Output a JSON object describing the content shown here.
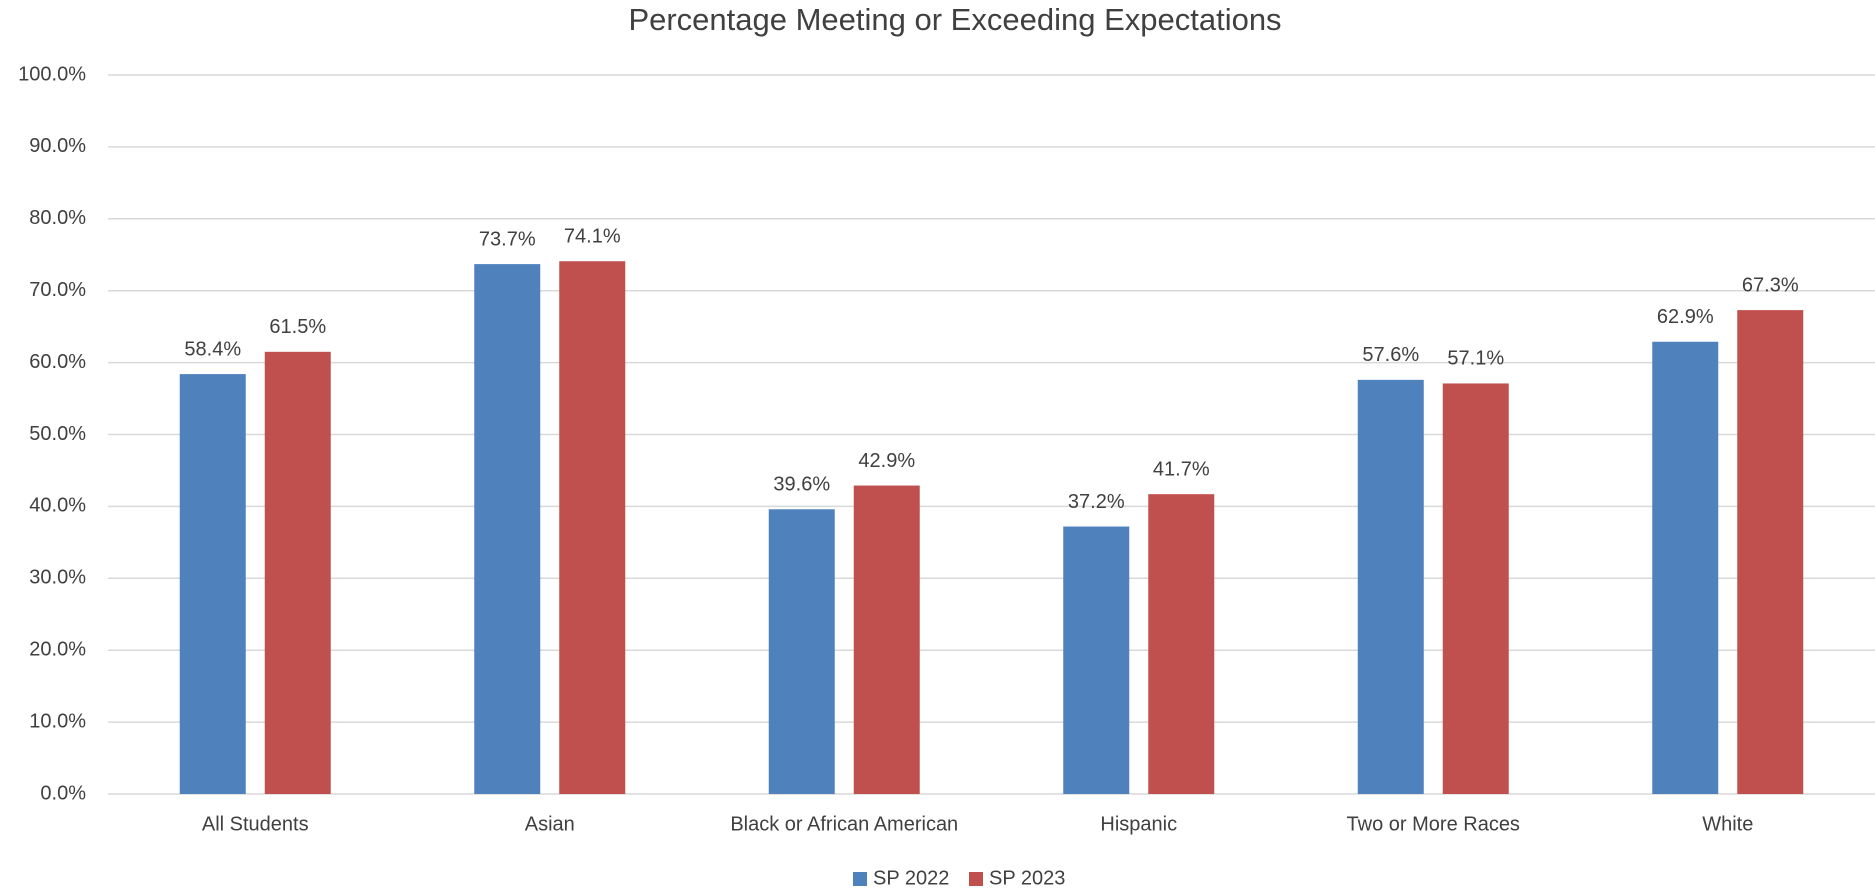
{
  "chart_data": {
    "type": "bar",
    "title": "Percentage Meeting or Exceeding Expectations",
    "categories": [
      "All Students",
      "Asian",
      "Black or African American",
      "Hispanic",
      "Two or More Races",
      "White"
    ],
    "series": [
      {
        "name": "SP 2022",
        "color": "#4f81bd",
        "values": [
          58.4,
          73.7,
          39.6,
          37.2,
          57.6,
          62.9
        ],
        "value_labels": [
          "58.4%",
          "73.7%",
          "39.6%",
          "37.2%",
          "57.6%",
          "62.9%"
        ]
      },
      {
        "name": "SP 2023",
        "color": "#c0504d",
        "values": [
          61.5,
          74.1,
          42.9,
          41.7,
          57.1,
          67.3
        ],
        "value_labels": [
          "61.5%",
          "74.1%",
          "42.9%",
          "41.7%",
          "57.1%",
          "67.3%"
        ]
      }
    ],
    "ylim": [
      0,
      100
    ],
    "yticks": [
      {
        "value": 0,
        "label": "0.0%"
      },
      {
        "value": 10,
        "label": "10.0%"
      },
      {
        "value": 20,
        "label": "20.0%"
      },
      {
        "value": 30,
        "label": "30.0%"
      },
      {
        "value": 40,
        "label": "40.0%"
      },
      {
        "value": 50,
        "label": "50.0%"
      },
      {
        "value": 60,
        "label": "60.0%"
      },
      {
        "value": 70,
        "label": "70.0%"
      },
      {
        "value": 80,
        "label": "80.0%"
      },
      {
        "value": 90,
        "label": "90.0%"
      },
      {
        "value": 100,
        "label": "100.0%"
      }
    ],
    "grid": true,
    "legend": "bottom"
  }
}
